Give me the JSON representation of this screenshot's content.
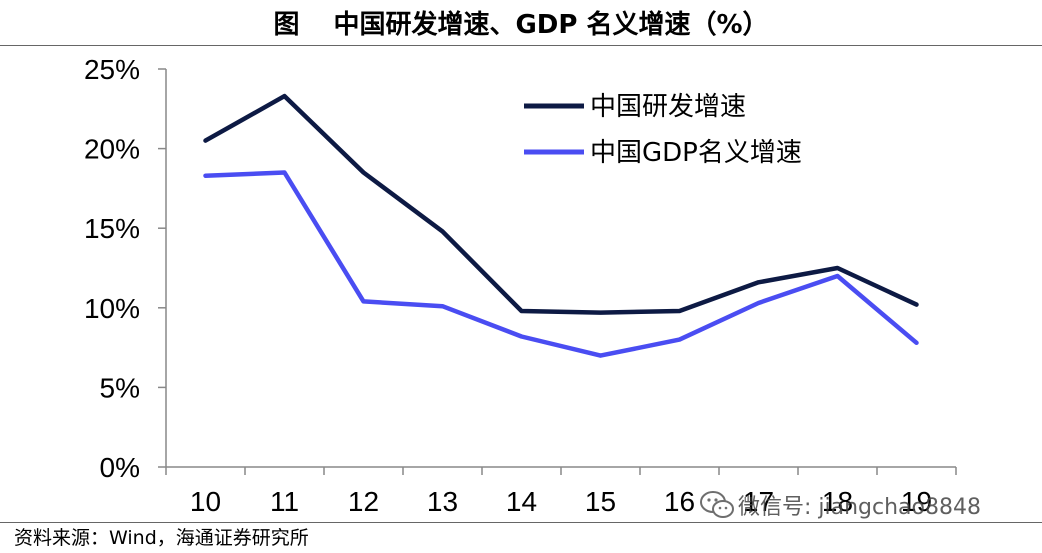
{
  "header": {
    "figure_label": "图",
    "title": "中国研发增速、GDP 名义增速（%）"
  },
  "source": "资料来源：Wind，海通证券研究所",
  "watermark": {
    "text": "微信号: jiangchao8848",
    "icon": "wechat-icon"
  },
  "chart_data": {
    "type": "line",
    "title": "中国研发增速、GDP 名义增速（%）",
    "categories": [
      "10",
      "11",
      "12",
      "13",
      "14",
      "15",
      "16",
      "17",
      "18",
      "19"
    ],
    "y_ticks": [
      "0%",
      "5%",
      "10%",
      "15%",
      "20%",
      "25%"
    ],
    "ylim": [
      0,
      25
    ],
    "legend_position": "top-right",
    "series": [
      {
        "name": "中国研发增速",
        "color": "#0d1a44",
        "values": [
          20.5,
          23.3,
          18.5,
          14.8,
          9.8,
          9.7,
          9.8,
          11.6,
          12.5,
          10.2
        ]
      },
      {
        "name": "中国GDP名义增速",
        "color": "#4a4df2",
        "values": [
          18.3,
          18.5,
          10.4,
          10.1,
          8.2,
          7.0,
          8.0,
          10.3,
          12.0,
          7.8
        ]
      }
    ]
  }
}
